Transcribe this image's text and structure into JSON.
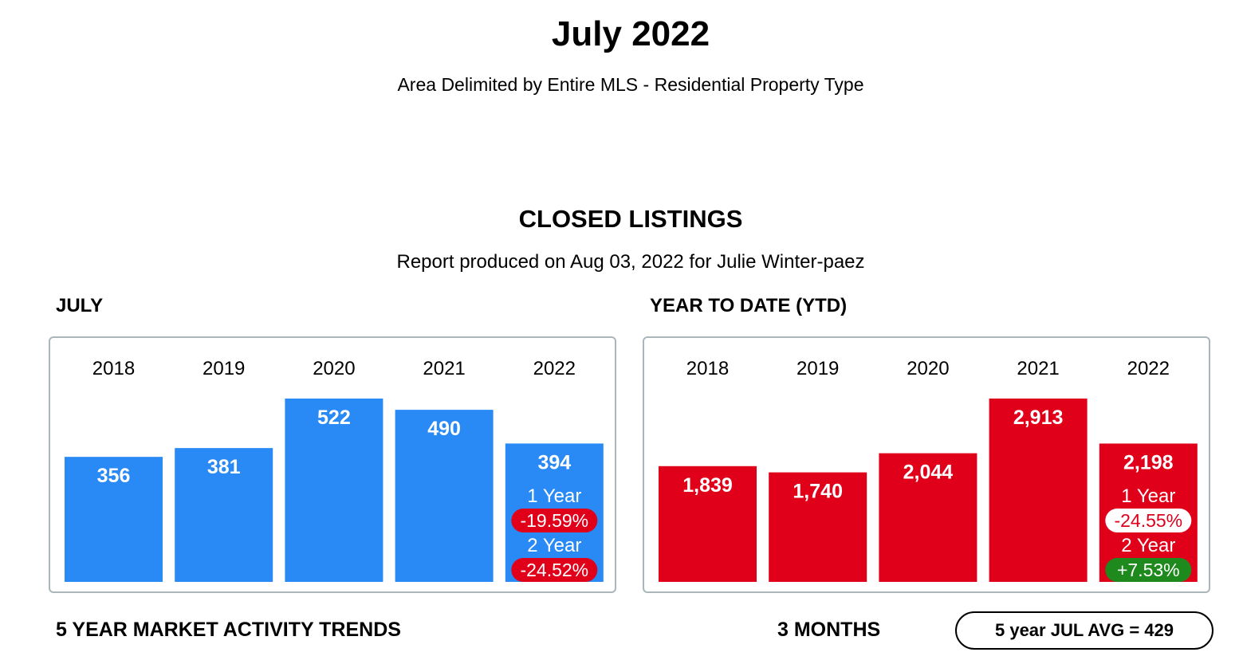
{
  "header": {
    "title": "July 2022",
    "subtitle": "Area Delimited by Entire MLS - Residential Property Type"
  },
  "section": {
    "title": "CLOSED LISTINGS",
    "report_line": "Report produced on Aug 03, 2022 for Julie Winter-paez"
  },
  "footer": {
    "trends_label": "5 YEAR MARKET ACTIVITY TRENDS",
    "months_label": "3 MONTHS",
    "avg_label": "5 year JUL AVG = 429"
  },
  "chart_data": [
    {
      "type": "bar",
      "title": "JULY",
      "categories": [
        "2018",
        "2019",
        "2020",
        "2021",
        "2022"
      ],
      "values": [
        356,
        381,
        522,
        490,
        394
      ],
      "value_labels": [
        "356",
        "381",
        "522",
        "490",
        "394"
      ],
      "bar_color": "#2a8af5",
      "changes": [
        {
          "label": "1 Year",
          "value": "-19.59%",
          "badge_bg": "#e0001a",
          "badge_fg": "#ffffff"
        },
        {
          "label": "2 Year",
          "value": "-24.52%",
          "badge_bg": "#e0001a",
          "badge_fg": "#ffffff"
        }
      ]
    },
    {
      "type": "bar",
      "title": "YEAR TO DATE (YTD)",
      "categories": [
        "2018",
        "2019",
        "2020",
        "2021",
        "2022"
      ],
      "values": [
        1839,
        1740,
        2044,
        2913,
        2198
      ],
      "value_labels": [
        "1,839",
        "1,740",
        "2,044",
        "2,913",
        "2,198"
      ],
      "bar_color": "#e0001a",
      "changes": [
        {
          "label": "1 Year",
          "value": "-24.55%",
          "badge_bg": "#ffffff",
          "badge_fg": "#e0001a"
        },
        {
          "label": "2 Year",
          "value": "+7.53%",
          "badge_bg": "#1e8a1e",
          "badge_fg": "#ffffff"
        }
      ]
    }
  ]
}
